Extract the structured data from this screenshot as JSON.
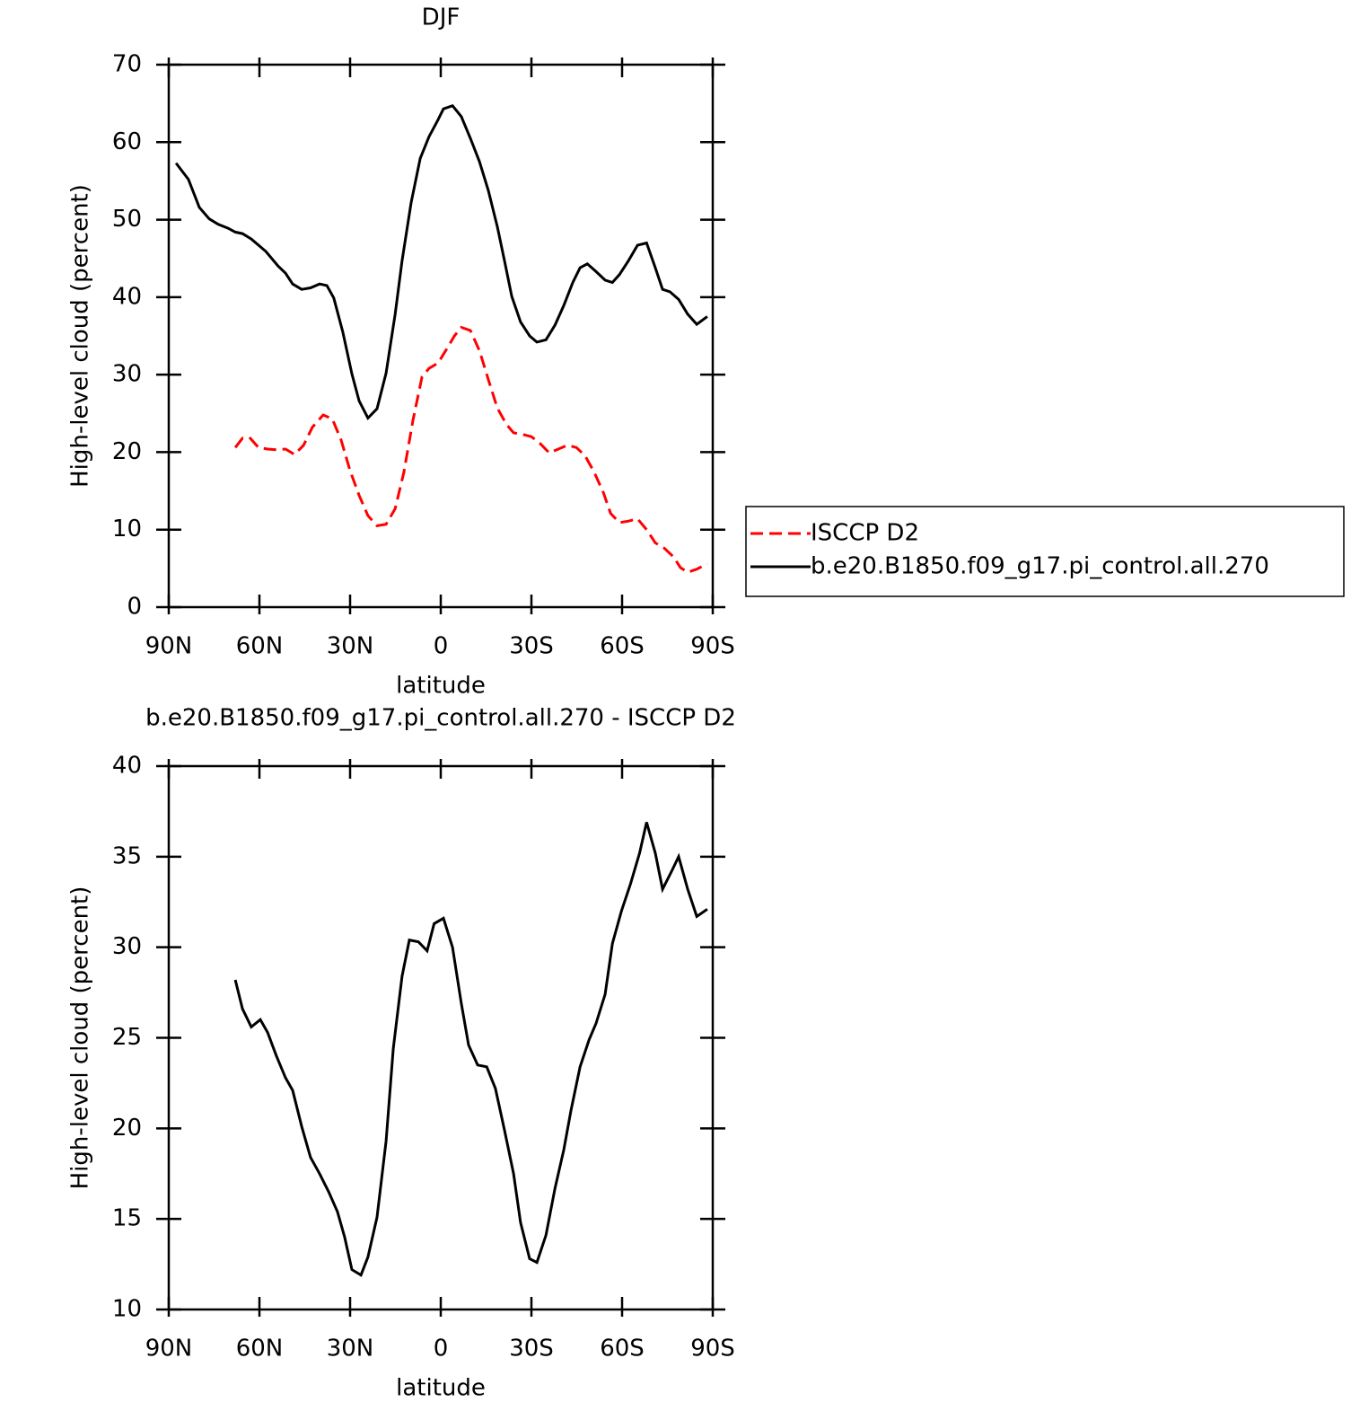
{
  "chart_data": [
    {
      "type": "line",
      "title": "DJF",
      "xlabel": "latitude",
      "ylabel": "High-level cloud (percent)",
      "xlim": [
        90,
        -90
      ],
      "xticks": [
        {
          "value": 90,
          "label": "90N"
        },
        {
          "value": 60,
          "label": "60N"
        },
        {
          "value": 30,
          "label": "30N"
        },
        0,
        {
          "value": -30,
          "label": "30S"
        },
        {
          "value": -60,
          "label": "60S"
        },
        {
          "value": -90,
          "label": "90S"
        }
      ],
      "ylim": [
        0,
        70
      ],
      "yticks": [
        0,
        10,
        20,
        30,
        40,
        50,
        60,
        70
      ],
      "legend": "right",
      "series": [
        {
          "name": "ISCCP D2",
          "color": "#ff0000",
          "line_style": "dashed",
          "x": [
            68.0,
            65.6,
            63.3,
            60.3,
            57.3,
            54.4,
            51.4,
            48.4,
            45.4,
            42.5,
            38.9,
            35.9,
            33.0,
            30.0,
            27.0,
            24.1,
            21.1,
            18.1,
            15.1,
            12.2,
            9.2,
            6.2,
            3.9,
            0.9,
            -2.1,
            -4.5,
            -6.8,
            -9.8,
            -12.8,
            -15.7,
            -18.7,
            -21.7,
            -24.1,
            -27.0,
            -30.0,
            -32.9,
            -35.9,
            -38.9,
            -41.9,
            -44.9,
            -47.8,
            -50.8,
            -53.8,
            -56.2,
            -59.1,
            -62.1,
            -65.1,
            -68.1,
            -71.0,
            -74.0,
            -77.0,
            -79.3,
            -81.7,
            -84.7,
            -88.2
          ],
          "values": [
            20.6,
            21.8,
            21.9,
            20.6,
            20.4,
            20.3,
            20.4,
            19.7,
            20.9,
            23.2,
            24.8,
            24.3,
            21.6,
            17.6,
            14.4,
            11.8,
            10.5,
            10.7,
            12.7,
            17.4,
            24.1,
            29.7,
            30.8,
            31.5,
            33.4,
            35.0,
            36.1,
            35.7,
            33.1,
            29.4,
            25.7,
            23.6,
            22.5,
            22.3,
            22.0,
            21.1,
            19.9,
            20.4,
            20.9,
            20.6,
            19.5,
            17.4,
            14.8,
            12.1,
            10.9,
            11.1,
            11.4,
            10.0,
            8.3,
            7.6,
            6.5,
            5.1,
            4.5,
            4.9,
            5.6
          ]
        },
        {
          "name": "b.e20.B1850.f09_g17.pi_control.all.270",
          "color": "#000000",
          "line_style": "solid",
          "x": [
            87.6,
            83.5,
            79.9,
            76.6,
            73.7,
            70.4,
            68.0,
            65.6,
            62.7,
            57.9,
            53.8,
            51.4,
            49.0,
            46.0,
            43.1,
            40.1,
            37.7,
            35.4,
            32.4,
            29.4,
            27.0,
            24.1,
            21.1,
            18.1,
            15.1,
            12.8,
            9.8,
            6.8,
            3.9,
            0.9,
            -0.9,
            -3.9,
            -6.8,
            -9.8,
            -12.8,
            -15.7,
            -18.7,
            -21.1,
            -23.5,
            -26.4,
            -29.4,
            -31.8,
            -34.8,
            -37.8,
            -40.7,
            -43.7,
            -46.1,
            -48.5,
            -51.4,
            -54.4,
            -56.8,
            -59.1,
            -62.1,
            -65.1,
            -68.1,
            -71.0,
            -73.4,
            -75.8,
            -78.7,
            -81.7,
            -84.7,
            -88.2
          ],
          "values": [
            57.3,
            55.2,
            51.6,
            50.1,
            49.4,
            48.9,
            48.4,
            48.2,
            47.5,
            45.9,
            44.0,
            43.1,
            41.7,
            41.0,
            41.2,
            41.7,
            41.5,
            39.9,
            35.5,
            30.1,
            26.6,
            24.4,
            25.6,
            30.2,
            37.8,
            44.7,
            52.2,
            57.9,
            60.7,
            62.9,
            64.3,
            64.7,
            63.3,
            60.5,
            57.5,
            53.8,
            49.1,
            44.7,
            40.1,
            36.8,
            35.0,
            34.2,
            34.5,
            36.4,
            38.9,
            41.9,
            43.8,
            44.3,
            43.3,
            42.2,
            41.9,
            42.9,
            44.7,
            46.7,
            47.0,
            43.8,
            41.0,
            40.7,
            39.7,
            37.8,
            36.5,
            37.5
          ]
        }
      ]
    },
    {
      "type": "line",
      "title": "b.e20.B1850.f09_g17.pi_control.all.270 - ISCCP D2",
      "xlabel": "latitude",
      "ylabel": "High-level cloud (percent)",
      "xlim": [
        90,
        -90
      ],
      "xticks": [
        {
          "value": 90,
          "label": "90N"
        },
        {
          "value": 60,
          "label": "60N"
        },
        {
          "value": 30,
          "label": "30N"
        },
        0,
        {
          "value": -30,
          "label": "30S"
        },
        {
          "value": -60,
          "label": "60S"
        },
        {
          "value": -90,
          "label": "90S"
        }
      ],
      "ylim": [
        10,
        40
      ],
      "yticks": [
        10,
        15,
        20,
        25,
        30,
        35,
        40
      ],
      "series": [
        {
          "color": "#000000",
          "line_style": "solid",
          "x": [
            68.0,
            65.6,
            62.7,
            59.7,
            57.3,
            54.4,
            51.4,
            49.0,
            46.0,
            43.1,
            40.1,
            37.1,
            34.2,
            31.8,
            29.4,
            26.4,
            24.1,
            21.1,
            18.1,
            15.7,
            12.8,
            10.4,
            7.4,
            4.5,
            2.2,
            -0.9,
            -3.9,
            -6.8,
            -9.2,
            -12.2,
            -15.2,
            -18.1,
            -21.1,
            -24.1,
            -26.4,
            -29.4,
            -31.8,
            -34.8,
            -37.8,
            -40.7,
            -43.1,
            -46.1,
            -49.1,
            -51.4,
            -54.4,
            -56.8,
            -59.8,
            -62.8,
            -65.8,
            -68.1,
            -71.0,
            -73.4,
            -76.4,
            -78.7,
            -81.7,
            -84.7,
            -88.2
          ],
          "values": [
            28.2,
            26.6,
            25.6,
            26.0,
            25.3,
            24.0,
            22.8,
            22.1,
            20.1,
            18.4,
            17.5,
            16.5,
            15.4,
            14.0,
            12.2,
            11.9,
            12.9,
            15.1,
            19.3,
            24.4,
            28.4,
            30.4,
            30.3,
            29.8,
            31.3,
            31.6,
            30.0,
            26.9,
            24.6,
            23.5,
            23.4,
            22.2,
            19.9,
            17.5,
            14.8,
            12.8,
            12.6,
            14.1,
            16.7,
            18.8,
            21.0,
            23.4,
            24.9,
            25.8,
            27.4,
            30.2,
            32.0,
            33.5,
            35.2,
            36.9,
            35.2,
            33.2,
            34.2,
            35.0,
            33.2,
            31.7,
            32.1
          ]
        }
      ]
    }
  ]
}
